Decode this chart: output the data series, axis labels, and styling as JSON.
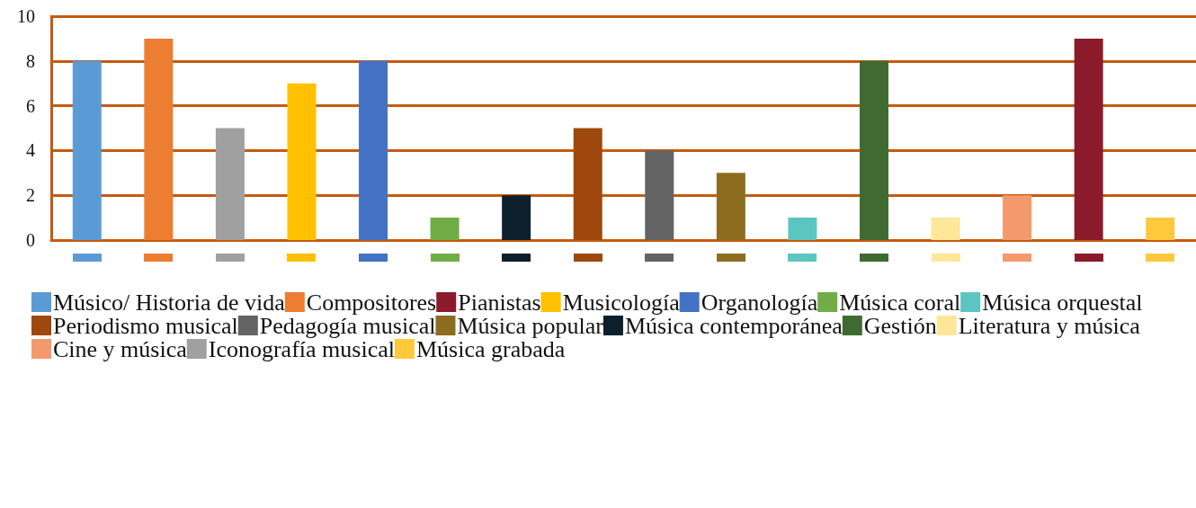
{
  "chart_data": {
    "type": "bar",
    "stacked": true,
    "categories": [
      null,
      null,
      null,
      null,
      null,
      null,
      null,
      null,
      null,
      null,
      null,
      null,
      null,
      null,
      null,
      null
    ],
    "ylim": [
      0,
      10
    ],
    "yticks": [
      0,
      2,
      4,
      6,
      8,
      10
    ],
    "grid": "y",
    "legend": "bottom",
    "series": [
      {
        "name": "Músico/ Historia de vida",
        "color": "#5b9bd5",
        "values": [
          8,
          null,
          null,
          null,
          null,
          null,
          null,
          null,
          null,
          null,
          null,
          null,
          null,
          null,
          null,
          null
        ]
      },
      {
        "name": "Compositores",
        "color": "#ed7d31",
        "values": [
          null,
          9,
          null,
          null,
          null,
          null,
          null,
          null,
          null,
          null,
          null,
          null,
          null,
          null,
          null,
          null
        ]
      },
      {
        "name": "Pianistas",
        "color": "#8b1a2b",
        "values": [
          null,
          null,
          null,
          null,
          null,
          null,
          null,
          null,
          null,
          null,
          null,
          null,
          null,
          null,
          9,
          null
        ]
      },
      {
        "name": "Musicología",
        "color": "#ffc000",
        "values": [
          null,
          null,
          null,
          7,
          null,
          null,
          null,
          null,
          null,
          null,
          null,
          null,
          null,
          null,
          null,
          null
        ]
      },
      {
        "name": "Organología",
        "color": "#4472c4",
        "values": [
          null,
          null,
          null,
          null,
          8,
          null,
          null,
          null,
          null,
          null,
          null,
          null,
          null,
          null,
          null,
          null
        ]
      },
      {
        "name": "Música coral",
        "color": "#70ad47",
        "values": [
          null,
          null,
          null,
          null,
          null,
          1,
          null,
          null,
          null,
          null,
          null,
          null,
          null,
          null,
          null,
          null
        ]
      },
      {
        "name": "Música orquestal",
        "color": "#5bc5c0",
        "values": [
          null,
          null,
          null,
          null,
          null,
          null,
          null,
          null,
          null,
          null,
          1,
          null,
          null,
          null,
          null,
          null
        ]
      },
      {
        "name": "Periodismo musical",
        "color": "#9e480e",
        "values": [
          null,
          null,
          null,
          null,
          null,
          null,
          null,
          5,
          null,
          null,
          null,
          null,
          null,
          null,
          null,
          null
        ]
      },
      {
        "name": "Pedagogía musical",
        "color": "#636363",
        "values": [
          null,
          null,
          null,
          null,
          null,
          null,
          null,
          null,
          4,
          null,
          null,
          null,
          null,
          null,
          null,
          null
        ]
      },
      {
        "name": "Música popular",
        "color": "#8c6d1f",
        "values": [
          null,
          null,
          null,
          null,
          null,
          null,
          null,
          null,
          null,
          3,
          null,
          null,
          null,
          null,
          null,
          null
        ]
      },
      {
        "name": "Música contemporánea",
        "color": "#0e1f2c",
        "values": [
          null,
          null,
          null,
          null,
          null,
          null,
          2,
          null,
          null,
          null,
          null,
          null,
          null,
          null,
          null,
          null
        ]
      },
      {
        "name": "Gestión",
        "color": "#3f6b32",
        "values": [
          null,
          null,
          null,
          null,
          null,
          null,
          null,
          null,
          null,
          null,
          null,
          8,
          null,
          null,
          null,
          null
        ]
      },
      {
        "name": "Literatura y música",
        "color": "#ffe699",
        "values": [
          null,
          null,
          null,
          null,
          null,
          null,
          null,
          null,
          null,
          null,
          null,
          null,
          1,
          null,
          null,
          null
        ]
      },
      {
        "name": "Cine y música",
        "color": "#f4996b",
        "values": [
          null,
          null,
          null,
          null,
          null,
          null,
          null,
          null,
          null,
          null,
          null,
          null,
          null,
          2,
          null,
          null
        ]
      },
      {
        "name": "Iconografía musical",
        "color": "#a0a0a0",
        "values": [
          null,
          null,
          5,
          null,
          null,
          null,
          null,
          null,
          null,
          null,
          null,
          null,
          null,
          null,
          null,
          null
        ]
      },
      {
        "name": "Música grabada",
        "color": "#ffc83d",
        "values": [
          null,
          null,
          null,
          null,
          null,
          null,
          null,
          null,
          null,
          null,
          null,
          null,
          null,
          null,
          null,
          1
        ]
      }
    ]
  }
}
